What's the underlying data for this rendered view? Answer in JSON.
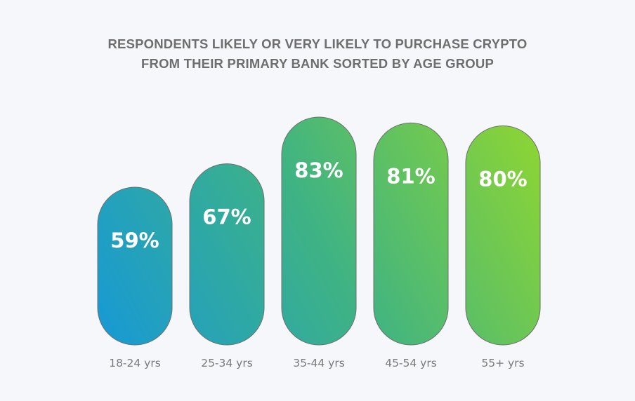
{
  "title_lines": [
    "RESPONDENTS LIKELY OR VERY LIKELY TO PURCHASE CRYPTO",
    "FROM THEIR PRIMARY BANK SORTED BY AGE GROUP"
  ],
  "chart_data": {
    "type": "bar",
    "title": "RESPONDENTS LIKELY OR VERY LIKELY TO PURCHASE CRYPTO FROM THEIR PRIMARY BANK SORTED BY AGE GROUP",
    "categories": [
      "18-24 yrs",
      "25-34 yrs",
      "35-44 yrs",
      "45-54 yrs",
      "55+ yrs"
    ],
    "values": [
      59,
      67,
      83,
      81,
      80
    ],
    "value_labels": [
      "59%",
      "67%",
      "83%",
      "81%",
      "80%"
    ],
    "xlabel": "",
    "ylabel": "",
    "ylim": [
      0,
      100
    ],
    "grid": false,
    "legend": "none",
    "colors": {
      "gradient_start": "#1799d6",
      "gradient_mid": "#3fb383",
      "gradient_end": "#8fd631",
      "bar_stroke": "#6e6e6e",
      "value_text": "#ffffff",
      "category_text": "#7a7a7a",
      "title_text": "#6e6e6e",
      "background": "#f6f7fb"
    }
  }
}
